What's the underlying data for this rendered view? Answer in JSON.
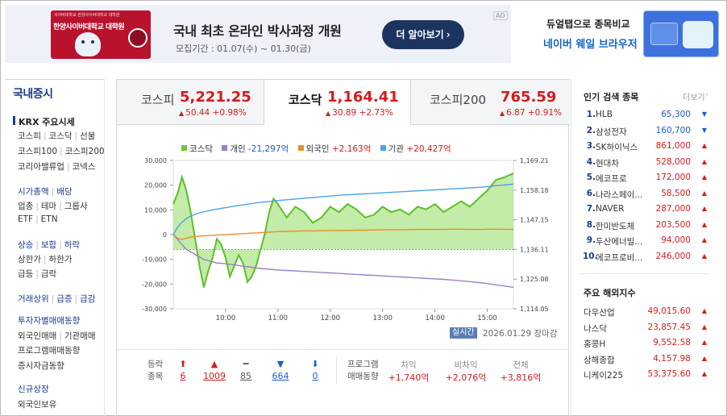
{
  "ad": {
    "badge": "AD",
    "logo_small": "사이버대학교 한양사이버대학교 대학원",
    "logo_name": "한양사이버대학교 대학원",
    "headline": "국내 최초 온라인 박사과정 개원",
    "period": "모집기간 : 01.07(수) ~ 01.30(금)",
    "button": "더 알아보기",
    "button_chevron": "›"
  },
  "side_ad": {
    "line1": "듀얼탭으로 종목비교",
    "line2": "네이버 웨일 브라우저"
  },
  "nav": {
    "title": "국내증시",
    "krx": "KRX 주요시세",
    "rows": [
      [
        "코스피",
        "코스닥",
        "선물"
      ],
      [
        "코스피100",
        "코스피200"
      ],
      [
        "코리아밸류업",
        "코넥스"
      ],
      [
        "시가총액",
        "배당"
      ],
      [
        "업종",
        "테마",
        "그룹사"
      ],
      [
        "ETF",
        "ETN"
      ],
      [
        "상승",
        "보합",
        "하락"
      ],
      [
        "상한가",
        "하한가"
      ],
      [
        "급등",
        "급락"
      ],
      [
        "거래상위",
        "급증",
        "급감"
      ],
      [
        "투자자별매매동향"
      ],
      [
        "외국인매매",
        "기관매매"
      ],
      [
        "프로그램매매동향"
      ],
      [
        "증시자금동향"
      ],
      [
        "신규상장"
      ],
      [
        "외국인보유"
      ]
    ]
  },
  "tabs": [
    {
      "name": "코스피",
      "value": "5,221.25",
      "change": "50.44 +0.98%"
    },
    {
      "name": "코스닥",
      "value": "1,164.41",
      "change": "30.89 +2.73%"
    },
    {
      "name": "코스피200",
      "value": "765.59",
      "change": "6.87 +0.91%"
    }
  ],
  "legend": [
    {
      "label": "코스닥",
      "value": "",
      "color": "#6cc93c"
    },
    {
      "label": "개인",
      "value": "-21,297억",
      "color": "#9b7fc7"
    },
    {
      "label": "외국인",
      "value": "+2,163억",
      "color": "#f08c2a"
    },
    {
      "label": "기관",
      "value": "+20,427억",
      "color": "#4aa3e6"
    }
  ],
  "chart_data": {
    "type": "line",
    "x": [
      "09:00",
      "09:05",
      "09:10",
      "09:15",
      "09:20",
      "09:25",
      "09:30",
      "09:35",
      "09:40",
      "09:45",
      "09:50",
      "09:55",
      "10:00",
      "10:05",
      "10:10",
      "10:15",
      "10:20",
      "10:25",
      "10:30",
      "10:35",
      "10:40",
      "10:45",
      "10:50",
      "10:55",
      "11:00",
      "11:10",
      "11:20",
      "11:30",
      "11:40",
      "11:50",
      "12:00",
      "12:10",
      "12:20",
      "12:30",
      "12:40",
      "12:50",
      "13:00",
      "13:10",
      "13:20",
      "13:30",
      "13:40",
      "13:50",
      "14:00",
      "14:10",
      "14:20",
      "14:30",
      "14:40",
      "14:50",
      "15:00",
      "15:10",
      "15:20",
      "15:30"
    ],
    "xticks": [
      "10:00",
      "11:00",
      "12:00",
      "13:00",
      "14:00",
      "15:00"
    ],
    "left_ticks": [
      "30,000",
      "20,000",
      "10,000",
      "0",
      "-10,000",
      "-20,000",
      "-30,000"
    ],
    "right_ticks": [
      "1,169.21",
      "1,158.18",
      "1,147.15",
      "1,136.11",
      "1,125.08",
      "1,114.05"
    ],
    "ylim_left": [
      -30000,
      30000
    ],
    "ylim_right": [
      1114.05,
      1169.21
    ],
    "reference_line": 1136.11,
    "series": [
      {
        "name": "코스닥",
        "axis": "right",
        "values": [
          1153,
          1157,
          1163,
          1158,
          1150,
          1140,
          1130,
          1122,
          1128,
          1133,
          1140,
          1138,
          1133,
          1126,
          1130,
          1134,
          1131,
          1124,
          1126,
          1130,
          1136,
          1142,
          1150,
          1155,
          1153,
          1148,
          1152,
          1150,
          1146,
          1148,
          1152,
          1150,
          1153,
          1151,
          1148,
          1149,
          1152,
          1150,
          1151,
          1149,
          1152,
          1151,
          1153,
          1150,
          1152,
          1154,
          1152,
          1155,
          1158,
          1162,
          1163,
          1164.41
        ]
      },
      {
        "name": "개인",
        "axis": "left",
        "values": [
          0,
          -2000,
          -4000,
          -6000,
          -7000,
          -8000,
          -9000,
          -10000,
          -10500,
          -11000,
          -11500,
          -11600,
          -11800,
          -12000,
          -12200,
          -12500,
          -12800,
          -13000,
          -13200,
          -13500,
          -13700,
          -13900,
          -14000,
          -14200,
          -14300,
          -14500,
          -14700,
          -14900,
          -15100,
          -15300,
          -15500,
          -15700,
          -15900,
          -16100,
          -16300,
          -16500,
          -16700,
          -16900,
          -17100,
          -17300,
          -17500,
          -17700,
          -17900,
          -18100,
          -18400,
          -18700,
          -19000,
          -19400,
          -19800,
          -20300,
          -20800,
          -21297
        ]
      },
      {
        "name": "외국인",
        "axis": "left",
        "values": [
          0,
          -1500,
          -2000,
          -1500,
          -1000,
          -800,
          -600,
          -500,
          -400,
          -300,
          -200,
          -100,
          0,
          100,
          200,
          300,
          400,
          500,
          600,
          700,
          800,
          900,
          1000,
          1100,
          1200,
          1300,
          1400,
          1500,
          1500,
          1600,
          1600,
          1700,
          1700,
          1800,
          1800,
          1900,
          1900,
          2000,
          2000,
          2000,
          2100,
          2100,
          2100,
          2100,
          2200,
          2200,
          2100,
          2100,
          2200,
          2200,
          2150,
          2163
        ]
      },
      {
        "name": "기관",
        "axis": "left",
        "values": [
          0,
          3000,
          5000,
          6500,
          7500,
          8200,
          8800,
          9200,
          9600,
          10000,
          10300,
          10600,
          10900,
          11200,
          11500,
          11800,
          12000,
          12300,
          12500,
          12800,
          13000,
          13200,
          13400,
          13600,
          13800,
          14100,
          14400,
          14700,
          15000,
          15300,
          15600,
          15900,
          16100,
          16300,
          16500,
          16700,
          16900,
          17100,
          17300,
          17500,
          17700,
          17900,
          18100,
          18300,
          18500,
          18700,
          18900,
          19100,
          19400,
          19800,
          20100,
          20427
        ]
      }
    ]
  },
  "chart_footer": {
    "badge": "실시간",
    "date": "2026.01.29 장마감"
  },
  "breadth": {
    "label1": "등락",
    "label2": "종목",
    "items": [
      {
        "arrow": "⬆",
        "value": "6",
        "tone": "red"
      },
      {
        "arrow": "▲",
        "value": "1009",
        "tone": "red"
      },
      {
        "arrow": "━",
        "value": "85",
        "tone": "gray"
      },
      {
        "arrow": "▼",
        "value": "664",
        "tone": "blue"
      },
      {
        "arrow": "⬇",
        "value": "0",
        "tone": "blue"
      }
    ],
    "program_label1": "프로그램",
    "program_label2": "매매동향",
    "program": [
      {
        "head": "차익",
        "value": "+1,740억"
      },
      {
        "head": "비차익",
        "value": "+2,076억"
      },
      {
        "head": "전체",
        "value": "+3,816억"
      }
    ]
  },
  "popular": {
    "title": "인기 검색 종목",
    "more": "더보기",
    "items": [
      {
        "rank": "1.",
        "name": "HLB",
        "price": "65,300",
        "dir": "down"
      },
      {
        "rank": "2.",
        "name": "삼성전자",
        "price": "160,700",
        "dir": "down"
      },
      {
        "rank": "3.",
        "name": "SK하이닉스",
        "price": "861,000",
        "dir": "up"
      },
      {
        "rank": "4.",
        "name": "현대차",
        "price": "528,000",
        "dir": "up"
      },
      {
        "rank": "5.",
        "name": "에코프로",
        "price": "172,000",
        "dir": "up"
      },
      {
        "rank": "6.",
        "name": "나라스페이...",
        "price": "58,500",
        "dir": "up"
      },
      {
        "rank": "7.",
        "name": "NAVER",
        "price": "287,000",
        "dir": "up"
      },
      {
        "rank": "8.",
        "name": "한미반도체",
        "price": "203,500",
        "dir": "up"
      },
      {
        "rank": "9.",
        "name": "두산에너빌...",
        "price": "94,000",
        "dir": "up"
      },
      {
        "rank": "10.",
        "name": "에코프로비...",
        "price": "246,000",
        "dir": "up"
      }
    ]
  },
  "overseas": {
    "title": "주요 해외지수",
    "items": [
      {
        "name": "다우산업",
        "price": "49,015.60"
      },
      {
        "name": "나스닥",
        "price": "23,857.45"
      },
      {
        "name": "홍콩H",
        "price": "9,552.58"
      },
      {
        "name": "상해종합",
        "price": "4,157.98"
      },
      {
        "name": "니케이225",
        "price": "53,375.60"
      }
    ]
  }
}
